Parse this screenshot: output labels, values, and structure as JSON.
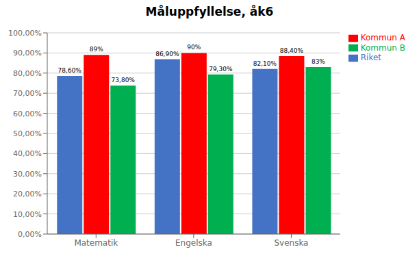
{
  "chart_data": {
    "type": "bar",
    "title": "Måluppfyllelse, åk6",
    "categories": [
      "Matematik",
      "Engelska",
      "Svenska"
    ],
    "series": [
      {
        "name": "Riket",
        "color": "#4472C4",
        "values": [
          78.6,
          86.9,
          82.1
        ],
        "value_labels": [
          "78,60%",
          "86,90%",
          "82,10%"
        ]
      },
      {
        "name": "Kommun A",
        "color": "#FF0000",
        "values": [
          89.0,
          90.0,
          88.4
        ],
        "value_labels": [
          "89%",
          "90%",
          "88,40%"
        ]
      },
      {
        "name": "Kommun B",
        "color": "#00B050",
        "values": [
          73.8,
          79.3,
          83.0
        ],
        "value_labels": [
          "73,80%",
          "79,30%",
          "83%"
        ]
      }
    ],
    "ylim": [
      0,
      100
    ],
    "yticks": [
      {
        "value": 0,
        "label": "0,00%"
      },
      {
        "value": 10,
        "label": "10,00%"
      },
      {
        "value": 20,
        "label": "20,00%"
      },
      {
        "value": 30,
        "label": "30,00%"
      },
      {
        "value": 40,
        "label": "40,00%"
      },
      {
        "value": 50,
        "label": "50,00%"
      },
      {
        "value": 60,
        "label": "60,00%"
      },
      {
        "value": 70,
        "label": "70,00%"
      },
      {
        "value": 80,
        "label": "80,00%"
      },
      {
        "value": 90,
        "label": "90,00%"
      },
      {
        "value": 100,
        "label": "100,00%"
      }
    ],
    "grid": true,
    "legend": "right",
    "data_labels": true
  }
}
